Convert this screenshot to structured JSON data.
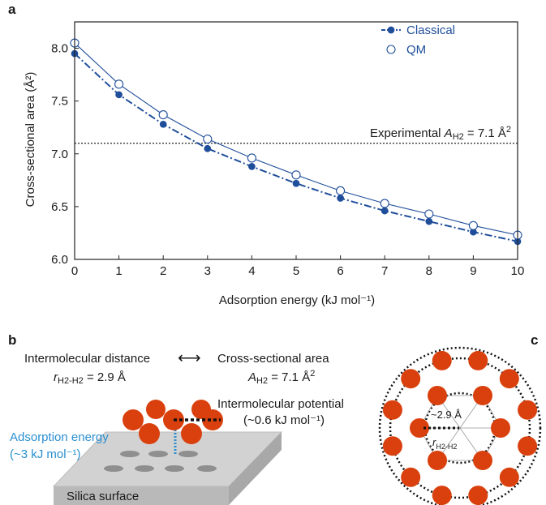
{
  "panels": {
    "a": "a",
    "b": "b",
    "c": "c"
  },
  "chart_data": {
    "type": "line",
    "xlabel": "Adsorption energy (kJ mol⁻¹)",
    "ylabel": "Cross-sectional area (Å²)",
    "xlim": [
      0,
      10
    ],
    "ylim": [
      6.0,
      8.25
    ],
    "x_ticks": [
      "0",
      "1",
      "2",
      "3",
      "4",
      "5",
      "6",
      "7",
      "8",
      "9",
      "10"
    ],
    "y_ticks": [
      "6.0",
      "6.5",
      "7.0",
      "7.5",
      "8.0"
    ],
    "x": [
      0,
      1,
      2,
      3,
      4,
      5,
      6,
      7,
      8,
      9,
      10
    ],
    "series": [
      {
        "name": "Classical",
        "values": [
          7.95,
          7.56,
          7.28,
          7.05,
          6.88,
          6.72,
          6.58,
          6.46,
          6.36,
          6.26,
          6.17
        ],
        "color": "#1f4e9a",
        "marker": "filled-circle",
        "line": "dash-dot"
      },
      {
        "name": "QM",
        "values": [
          8.05,
          7.66,
          7.37,
          7.14,
          6.96,
          6.8,
          6.65,
          6.53,
          6.43,
          6.32,
          6.23
        ],
        "color": "#1f4e9a",
        "marker": "open-circle",
        "line": "solid"
      }
    ],
    "reference_line": {
      "y": 7.1,
      "label": "Experimental A",
      "sub": "H2",
      "rest": " = 7.1 Å",
      "sup": "2"
    },
    "legend_position": "top-right",
    "grid": false
  },
  "panel_b": {
    "left_title": "Intermolecular distance",
    "arrow": "⟷",
    "right_title": "Cross-sectional area",
    "r_symbol": "r",
    "r_sub": "H2-H2",
    "r_value": " = 2.9 Å",
    "a_symbol": "A",
    "a_sub": "H2",
    "a_value": " = 7.1 Å",
    "a_sup": "2",
    "potential_line1": "Intermolecular potential",
    "potential_line2": "(~0.6 kJ mol⁻¹)",
    "adsorption_line1": "Adsorption energy",
    "adsorption_line2": "(~3 kJ mol⁻¹)",
    "surface_label": "Silica surface",
    "molecule_color": "#d9400e",
    "adsorption_color": "#2a8fd0"
  },
  "panel_c": {
    "distance_label": "~2.9 Å",
    "r_symbol": "r",
    "r_sub": "H2-H2"
  }
}
